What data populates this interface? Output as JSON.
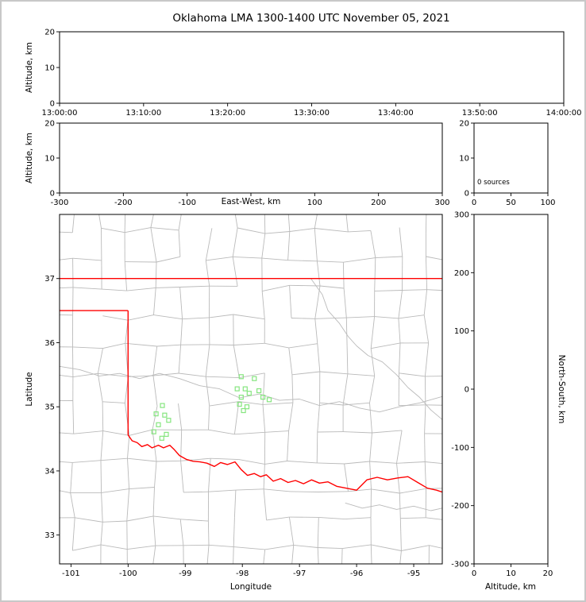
{
  "title": "Oklahoma LMA 1300-1400 UTC November 05, 2021",
  "colors": {
    "frame": "#c8c8c8",
    "axes": "#000000",
    "background": "#ffffff"
  },
  "chart_data": [
    {
      "id": "time_altitude_panel",
      "type": "scatter",
      "x_axis": "Time (UTC)",
      "xlabel": "",
      "ylabel": "Altitude, km",
      "xlim": [
        0,
        6
      ],
      "xticks": [
        0,
        1,
        2,
        3,
        4,
        5,
        6
      ],
      "xtick_labels": [
        "13:00:00",
        "13:10:00",
        "13:20:00",
        "13:30:00",
        "13:40:00",
        "13:50:00",
        "14:00:00"
      ],
      "ylim": [
        0,
        20
      ],
      "yticks": [
        0,
        10,
        20
      ],
      "ytick_labels": [
        "0",
        "10",
        "20"
      ],
      "points": []
    },
    {
      "id": "east_west_altitude_panel",
      "type": "scatter",
      "xlabel": "East-West, km",
      "ylabel": "Altitude, km",
      "xlim": [
        -300,
        300
      ],
      "xticks": [
        -300,
        -200,
        -100,
        0,
        100,
        200,
        300
      ],
      "xtick_labels": [
        "-300",
        "-200",
        "-100",
        "",
        "100",
        "200",
        "300"
      ],
      "ylim": [
        0,
        20
      ],
      "yticks": [
        0,
        10,
        20
      ],
      "ytick_labels": [
        "0",
        "10",
        "20"
      ],
      "points": []
    },
    {
      "id": "altitude_source_histogram",
      "type": "line",
      "xlabel": "",
      "ylabel": "",
      "annotation": "0 sources",
      "xlim": [
        0,
        100
      ],
      "xticks": [
        0,
        50,
        100
      ],
      "xtick_labels": [
        "0",
        "50",
        "100"
      ],
      "ylim": [
        0,
        20
      ],
      "yticks": [
        0,
        10,
        20
      ],
      "ytick_labels": [
        "0",
        "10",
        "20"
      ],
      "points": []
    },
    {
      "id": "plan_view_map",
      "type": "scatter",
      "xlabel": "Longitude",
      "ylabel": "Latitude",
      "xlim": [
        -101.2,
        -94.5
      ],
      "xticks": [
        -101,
        -100,
        -99,
        -98,
        -97,
        -96,
        -95
      ],
      "xtick_labels": [
        "-101",
        "-100",
        "-99",
        "-98",
        "-97",
        "-96",
        "-95"
      ],
      "ylim": [
        32.55,
        38.0
      ],
      "yticks": [
        33,
        34,
        35,
        36,
        37
      ],
      "ytick_labels": [
        "33",
        "34",
        "35",
        "36",
        "37"
      ],
      "marker": "open_square",
      "marker_color": "#86e57f",
      "county_color": "#bababa",
      "border_color": "#ff0000",
      "points": [
        [
          -99.4,
          35.02
        ],
        [
          -99.51,
          34.89
        ],
        [
          -99.36,
          34.87
        ],
        [
          -99.29,
          34.79
        ],
        [
          -99.47,
          34.72
        ],
        [
          -99.55,
          34.61
        ],
        [
          -99.33,
          34.57
        ],
        [
          -99.41,
          34.51
        ],
        [
          -98.02,
          35.47
        ],
        [
          -97.79,
          35.44
        ],
        [
          -98.09,
          35.28
        ],
        [
          -97.95,
          35.28
        ],
        [
          -97.71,
          35.25
        ],
        [
          -97.88,
          35.21
        ],
        [
          -98.02,
          35.15
        ],
        [
          -97.64,
          35.15
        ],
        [
          -97.53,
          35.11
        ],
        [
          -98.05,
          35.04
        ],
        [
          -97.92,
          35.0
        ],
        [
          -97.98,
          34.94
        ]
      ],
      "state_border": [
        [
          [
            -101.2,
            37.0
          ],
          [
            -94.5,
            37.0
          ]
        ],
        [
          [
            -101.2,
            36.5
          ],
          [
            -100.0,
            36.5
          ]
        ],
        [
          [
            -100.0,
            36.5
          ],
          [
            -100.0,
            34.56
          ]
        ],
        [
          [
            -100.0,
            34.56
          ],
          [
            -99.93,
            34.47
          ],
          [
            -99.84,
            34.44
          ],
          [
            -99.76,
            34.38
          ],
          [
            -99.66,
            34.41
          ],
          [
            -99.58,
            34.36
          ],
          [
            -99.47,
            34.4
          ],
          [
            -99.38,
            34.36
          ],
          [
            -99.27,
            34.4
          ],
          [
            -99.19,
            34.33
          ],
          [
            -99.1,
            34.24
          ],
          [
            -98.98,
            34.18
          ],
          [
            -98.86,
            34.15
          ],
          [
            -98.74,
            34.14
          ],
          [
            -98.62,
            34.12
          ],
          [
            -98.49,
            34.07
          ],
          [
            -98.38,
            34.13
          ],
          [
            -98.26,
            34.1
          ],
          [
            -98.13,
            34.14
          ],
          [
            -98.02,
            34.02
          ],
          [
            -97.91,
            33.93
          ],
          [
            -97.79,
            33.96
          ],
          [
            -97.68,
            33.91
          ],
          [
            -97.58,
            33.94
          ],
          [
            -97.46,
            33.84
          ],
          [
            -97.33,
            33.88
          ],
          [
            -97.2,
            33.82
          ],
          [
            -97.07,
            33.85
          ],
          [
            -96.93,
            33.8
          ],
          [
            -96.79,
            33.86
          ],
          [
            -96.65,
            33.81
          ],
          [
            -96.5,
            33.83
          ],
          [
            -96.35,
            33.76
          ],
          [
            -96.18,
            33.73
          ],
          [
            -96.0,
            33.7
          ],
          [
            -95.82,
            33.86
          ],
          [
            -95.64,
            33.9
          ],
          [
            -95.46,
            33.86
          ],
          [
            -95.28,
            33.89
          ],
          [
            -95.1,
            33.91
          ],
          [
            -94.93,
            33.82
          ],
          [
            -94.76,
            33.73
          ],
          [
            -94.6,
            33.7
          ],
          [
            -94.5,
            33.67
          ]
        ]
      ],
      "rivers": [
        [
          [
            -101.2,
            35.63
          ],
          [
            -100.85,
            35.58
          ],
          [
            -100.5,
            35.48
          ],
          [
            -100.15,
            35.52
          ],
          [
            -99.8,
            35.44
          ],
          [
            -99.45,
            35.52
          ],
          [
            -99.1,
            35.44
          ],
          [
            -98.75,
            35.33
          ],
          [
            -98.4,
            35.28
          ],
          [
            -98.05,
            35.14
          ],
          [
            -97.7,
            35.2
          ],
          [
            -97.35,
            35.1
          ],
          [
            -97.0,
            35.12
          ],
          [
            -96.65,
            35.02
          ],
          [
            -96.3,
            35.08
          ],
          [
            -95.95,
            34.98
          ],
          [
            -95.6,
            34.92
          ],
          [
            -95.25,
            35.0
          ],
          [
            -94.9,
            35.06
          ],
          [
            -94.5,
            35.16
          ]
        ],
        [
          [
            -96.8,
            37.0
          ],
          [
            -96.6,
            36.75
          ],
          [
            -96.5,
            36.5
          ],
          [
            -96.3,
            36.3
          ],
          [
            -96.15,
            36.1
          ],
          [
            -96.0,
            35.95
          ],
          [
            -95.8,
            35.8
          ],
          [
            -95.55,
            35.7
          ],
          [
            -95.3,
            35.5
          ],
          [
            -95.1,
            35.3
          ],
          [
            -94.9,
            35.15
          ],
          [
            -94.7,
            34.95
          ],
          [
            -94.5,
            34.8
          ]
        ],
        [
          [
            -96.2,
            33.5
          ],
          [
            -95.9,
            33.42
          ],
          [
            -95.6,
            33.47
          ],
          [
            -95.3,
            33.4
          ],
          [
            -95.0,
            33.45
          ],
          [
            -94.7,
            33.38
          ],
          [
            -94.5,
            33.42
          ]
        ]
      ]
    },
    {
      "id": "north_south_altitude_panel",
      "type": "scatter",
      "xlabel": "Altitude, km",
      "ylabel_right": "North-South, km",
      "xlim": [
        0,
        20
      ],
      "xticks": [
        0,
        10,
        20
      ],
      "xtick_labels": [
        "0",
        "10",
        "20"
      ],
      "ylim": [
        -300,
        300
      ],
      "yticks": [
        -300,
        -200,
        -100,
        0,
        100,
        200,
        300
      ],
      "ytick_labels": [
        "-300",
        "-200",
        "-100",
        "0",
        "100",
        "200",
        "300"
      ],
      "points": []
    }
  ]
}
